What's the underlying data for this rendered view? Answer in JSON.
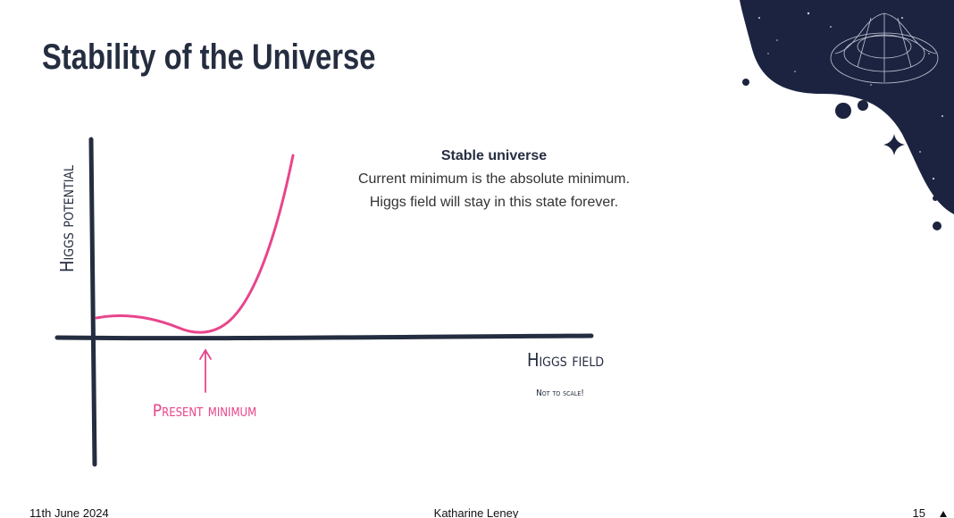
{
  "slide": {
    "title": "Stability of the Universe",
    "text": {
      "heading": "Stable universe",
      "lines": [
        "Current minimum is the absolute minimum.",
        "Higgs field will stay in this state forever."
      ]
    },
    "diagram": {
      "y_label": "Higgs potential",
      "x_label": "Higgs field",
      "marker_label": "Present minimum",
      "note": "Not to scale!"
    }
  },
  "footer": {
    "date": "11th June 2024",
    "author": "Katharine Leney",
    "page": "15"
  }
}
